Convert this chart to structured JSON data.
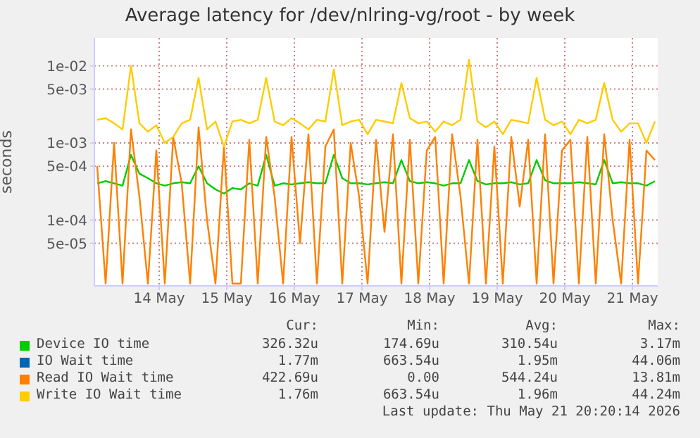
{
  "chart_data": {
    "type": "line",
    "title": "Average latency for /dev/nlring-vg/root - by week",
    "ylabel": "seconds",
    "log": true,
    "grid": true,
    "legend": "bottom",
    "marker": "none",
    "line_style": "solid",
    "xlim": [
      "2026-05-13T01:00",
      "2026-05-21T09:00"
    ],
    "xticks": [
      {
        "value": "2026-05-14",
        "label": "14 May"
      },
      {
        "value": "2026-05-15",
        "label": "15 May"
      },
      {
        "value": "2026-05-16",
        "label": "16 May"
      },
      {
        "value": "2026-05-17",
        "label": "17 May"
      },
      {
        "value": "2026-05-18",
        "label": "18 May"
      },
      {
        "value": "2026-05-19",
        "label": "19 May"
      },
      {
        "value": "2026-05-20",
        "label": "20 May"
      },
      {
        "value": "2026-05-21",
        "label": "21 May"
      }
    ],
    "ylim": [
      1.4e-05,
      0.023
    ],
    "yticks": [
      {
        "value": 5e-05,
        "label": "5e-05"
      },
      {
        "value": 0.0001,
        "label": "1e-04"
      },
      {
        "value": 0.0005,
        "label": "5e-04"
      },
      {
        "value": 0.001,
        "label": "1e-03"
      },
      {
        "value": 0.005,
        "label": "5e-03"
      },
      {
        "value": 0.01,
        "label": "1e-02"
      }
    ],
    "x": [
      "2026-05-13T02:00",
      "2026-05-13T05:00",
      "2026-05-13T08:00",
      "2026-05-13T11:00",
      "2026-05-13T14:00",
      "2026-05-13T17:00",
      "2026-05-13T20:00",
      "2026-05-13T23:00",
      "2026-05-14T02:00",
      "2026-05-14T05:00",
      "2026-05-14T08:00",
      "2026-05-14T11:00",
      "2026-05-14T14:00",
      "2026-05-14T17:00",
      "2026-05-14T20:00",
      "2026-05-14T23:00",
      "2026-05-15T02:00",
      "2026-05-15T05:00",
      "2026-05-15T08:00",
      "2026-05-15T11:00",
      "2026-05-15T14:00",
      "2026-05-15T17:00",
      "2026-05-15T20:00",
      "2026-05-15T23:00",
      "2026-05-16T02:00",
      "2026-05-16T05:00",
      "2026-05-16T08:00",
      "2026-05-16T11:00",
      "2026-05-16T14:00",
      "2026-05-16T17:00",
      "2026-05-16T20:00",
      "2026-05-16T23:00",
      "2026-05-17T02:00",
      "2026-05-17T05:00",
      "2026-05-17T08:00",
      "2026-05-17T11:00",
      "2026-05-17T14:00",
      "2026-05-17T17:00",
      "2026-05-17T20:00",
      "2026-05-17T23:00",
      "2026-05-18T02:00",
      "2026-05-18T05:00",
      "2026-05-18T08:00",
      "2026-05-18T11:00",
      "2026-05-18T14:00",
      "2026-05-18T17:00",
      "2026-05-18T20:00",
      "2026-05-18T23:00",
      "2026-05-19T02:00",
      "2026-05-19T05:00",
      "2026-05-19T08:00",
      "2026-05-19T11:00",
      "2026-05-19T14:00",
      "2026-05-19T17:00",
      "2026-05-19T20:00",
      "2026-05-19T23:00",
      "2026-05-20T02:00",
      "2026-05-20T05:00",
      "2026-05-20T08:00",
      "2026-05-20T11:00",
      "2026-05-20T14:00",
      "2026-05-20T17:00",
      "2026-05-20T20:00",
      "2026-05-20T23:00",
      "2026-05-21T02:00",
      "2026-05-21T05:00",
      "2026-05-21T08:00"
    ],
    "series": [
      {
        "name": "Device IO time",
        "color": "#00cc00",
        "values": [
          0.0003,
          0.00032,
          0.0003,
          0.00028,
          0.0007,
          0.0004,
          0.00035,
          0.0003,
          0.00028,
          0.0003,
          0.00031,
          0.0003,
          0.0005,
          0.0003,
          0.00025,
          0.00022,
          0.00026,
          0.00025,
          0.0003,
          0.00028,
          0.0007,
          0.00028,
          0.0003,
          0.00029,
          0.0003,
          0.00031,
          0.0003,
          0.0003,
          0.0007,
          0.00035,
          0.0003,
          0.0003,
          0.00029,
          0.0003,
          0.00031,
          0.0003,
          0.0006,
          0.00032,
          0.0003,
          0.00031,
          0.0003,
          0.00028,
          0.0003,
          0.0003,
          0.0006,
          0.00032,
          0.00029,
          0.0003,
          0.0003,
          0.00031,
          0.00029,
          0.0003,
          0.0006,
          0.00033,
          0.0003,
          0.0003,
          0.0003,
          0.00031,
          0.0003,
          0.00029,
          0.0006,
          0.0003,
          0.00031,
          0.0003,
          0.0003,
          0.00028,
          0.00032
        ]
      },
      {
        "name": "IO Wait time",
        "color": "#0066b3",
        "values": [
          null,
          null,
          null,
          null,
          null,
          null,
          null,
          null,
          null,
          null,
          null,
          null,
          null,
          null,
          null,
          null,
          null,
          null,
          null,
          null,
          null,
          null,
          null,
          null,
          null,
          null,
          null,
          null,
          null,
          null,
          null,
          null,
          null,
          null,
          null,
          null,
          null,
          null,
          null,
          null,
          null,
          null,
          null,
          null,
          null,
          null,
          null,
          null,
          null,
          null,
          null,
          null,
          null,
          null,
          null,
          null,
          null,
          null,
          null,
          null,
          null,
          null,
          null,
          null,
          null,
          null,
          null
        ]
      },
      {
        "name": "Read IO Wait time",
        "color": "#ff8000",
        "values": [
          0.0005,
          1.5e-05,
          0.001,
          1.5e-05,
          0.0015,
          0.0002,
          1.5e-05,
          0.0008,
          1.5e-05,
          0.0012,
          0.0003,
          1.5e-05,
          0.0016,
          0.0001,
          1.5e-05,
          0.0009,
          1.5e-05,
          1.5e-05,
          0.0011,
          1.5e-05,
          0.0012,
          0.0002,
          1.5e-05,
          0.0012,
          5e-05,
          0.0013,
          1.5e-05,
          0.0009,
          0.0015,
          1.5e-05,
          0.001,
          0.0002,
          1.5e-05,
          0.0011,
          7e-05,
          0.0013,
          1.5e-05,
          0.0011,
          1.5e-05,
          0.0008,
          0.0012,
          1.5e-05,
          0.0013,
          0.0002,
          1.5e-05,
          0.0011,
          1.5e-05,
          0.0009,
          1.5e-05,
          0.0012,
          0.00015,
          0.0011,
          1.5e-05,
          0.0013,
          1.5e-05,
          0.0008,
          0.0011,
          1.5e-05,
          0.0012,
          1.5e-05,
          0.0013,
          0.0001,
          1.5e-05,
          0.0011,
          1.5e-05,
          0.0008,
          0.0006
        ]
      },
      {
        "name": "Write IO Wait time",
        "color": "#ffcc00",
        "values": [
          0.002,
          0.0021,
          0.0018,
          0.0015,
          0.01,
          0.0018,
          0.0014,
          0.0017,
          0.001,
          0.0012,
          0.0018,
          0.002,
          0.007,
          0.0015,
          0.0019,
          0.0009,
          0.0019,
          0.002,
          0.0018,
          0.002,
          0.007,
          0.0019,
          0.0017,
          0.0021,
          0.0018,
          0.0015,
          0.002,
          0.0019,
          0.009,
          0.0017,
          0.0019,
          0.002,
          0.0013,
          0.002,
          0.0019,
          0.0018,
          0.006,
          0.0021,
          0.0018,
          0.0019,
          0.0014,
          0.0019,
          0.0017,
          0.002,
          0.012,
          0.0019,
          0.0016,
          0.0019,
          0.0013,
          0.002,
          0.0019,
          0.0018,
          0.007,
          0.002,
          0.0017,
          0.0019,
          0.0013,
          0.002,
          0.0018,
          0.002,
          0.006,
          0.002,
          0.0014,
          0.0018,
          0.0018,
          0.001,
          0.0019
        ]
      }
    ],
    "annotations": [
      "Cur:",
      "Min:",
      "Avg:",
      "Max:",
      "326.32u",
      "174.69u",
      "310.54u",
      "3.17m",
      "1.77m",
      "663.54u",
      "1.95m",
      "44.06m",
      "422.69u",
      "0.00",
      "544.24u",
      "13.81m",
      "1.76m",
      "663.54u",
      "1.96m",
      "44.24m",
      "Last update: Thu May 21 20:20:14 2026"
    ]
  }
}
